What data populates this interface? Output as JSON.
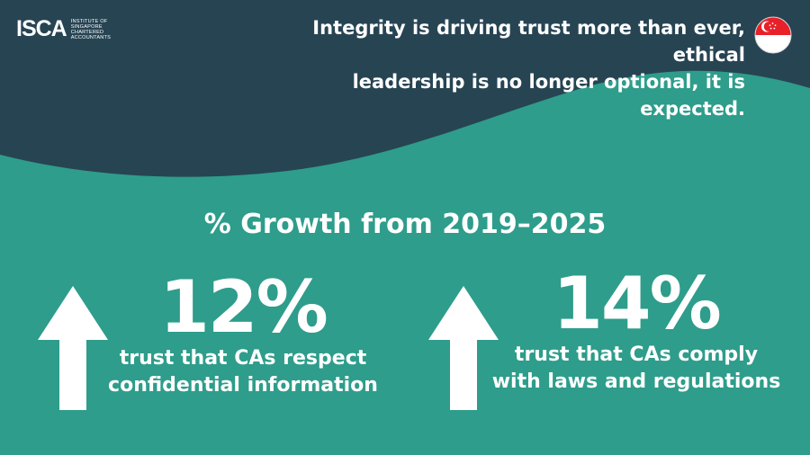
{
  "brand": {
    "logo_mark": "ISCA",
    "logo_text": [
      "INSTITUTE OF",
      "SINGAPORE",
      "CHARTERED",
      "ACCOUNTANTS"
    ]
  },
  "headline": {
    "lines": [
      "Integrity is driving trust more than ever, ethical",
      "leadership is no longer optional, it is expected."
    ]
  },
  "flag": {
    "icon": "singapore-flag-icon",
    "colors": {
      "top": "#e8202a",
      "bottom": "#ffffff"
    }
  },
  "section_title": "% Growth from 2019–2025",
  "stats": [
    {
      "value": "12%",
      "desc": [
        "trust that CAs respect",
        "confidential information"
      ],
      "icon": "up-arrow-icon"
    },
    {
      "value": "14%",
      "desc": [
        "trust that CAs comply",
        "with laws and regulations"
      ],
      "icon": "up-arrow-icon"
    }
  ],
  "colors": {
    "dark": "#274453",
    "teal": "#2e9d8b",
    "text": "#ffffff"
  }
}
